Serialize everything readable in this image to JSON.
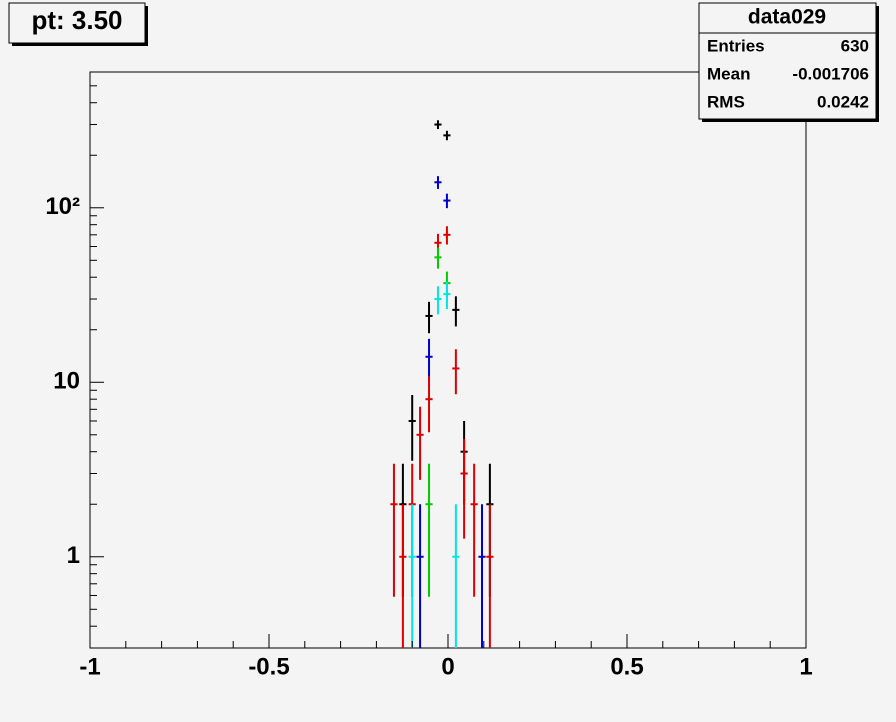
{
  "chart_data": {
    "type": "errorbar",
    "title": "pt: 3.50",
    "stats": {
      "title": "data029",
      "rows": [
        {
          "label": "Entries",
          "value": "630"
        },
        {
          "label": "Mean",
          "value": "-0.001706"
        },
        {
          "label": "RMS",
          "value": "0.0242"
        }
      ]
    },
    "log_y": true,
    "xlim": [
      -1,
      1
    ],
    "ylim": [
      0.3,
      600
    ],
    "xticks": [
      -1,
      -0.5,
      0,
      0.5,
      1
    ],
    "xminorticks": [
      -0.9,
      -0.8,
      -0.7,
      -0.6,
      -0.4,
      -0.3,
      -0.2,
      -0.1,
      0.1,
      0.2,
      0.3,
      0.4,
      0.6,
      0.7,
      0.8,
      0.9
    ],
    "yticks": [
      1,
      10,
      {
        "value": 100,
        "label": "10²"
      }
    ],
    "yminorticks": [
      0.4,
      0.5,
      0.6,
      0.7,
      0.8,
      0.9,
      2,
      3,
      4,
      5,
      6,
      7,
      8,
      9,
      20,
      30,
      40,
      50,
      60,
      70,
      80,
      90,
      200,
      300,
      400,
      500
    ],
    "xerr": 0.01,
    "series": [
      {
        "color": "#000000",
        "x": [
          -0.028,
          -0.003,
          -0.053,
          0.022,
          -0.1,
          0.045,
          -0.126,
          0.117
        ],
        "values": [
          300,
          260,
          24,
          26,
          6,
          4,
          2,
          2
        ],
        "errors": [
          17.3,
          16.1,
          4.9,
          5.1,
          2.45,
          2,
          1.41,
          1.41
        ]
      },
      {
        "color": "#0000cc",
        "x": [
          -0.028,
          -0.003,
          -0.053,
          -0.078,
          0.095
        ],
        "values": [
          140,
          110,
          14,
          1,
          1
        ],
        "errors": [
          11.8,
          10.5,
          3.74,
          1,
          1
        ]
      },
      {
        "color": "#dd0000",
        "x": [
          -0.028,
          -0.003,
          -0.053,
          0.022,
          -0.078,
          0.045,
          -0.151,
          0.073,
          -0.126,
          0.117,
          -0.1
        ],
        "values": [
          63,
          70,
          8,
          12,
          5,
          3,
          2,
          2,
          1,
          1,
          2
        ],
        "errors": [
          7.9,
          8.4,
          2.83,
          3.46,
          2.24,
          1.73,
          1.41,
          1.41,
          1,
          1,
          1.41
        ]
      },
      {
        "color": "#00cc00",
        "x": [
          -0.028,
          -0.003,
          -0.053
        ],
        "values": [
          52,
          37,
          2
        ],
        "errors": [
          7.2,
          6.1,
          1.41
        ]
      },
      {
        "color": "#00e5e5",
        "x": [
          -0.028,
          -0.003,
          -0.1,
          0.022
        ],
        "values": [
          30,
          32,
          1,
          1
        ],
        "errors": [
          5.5,
          5.7,
          1,
          1
        ]
      }
    ]
  }
}
